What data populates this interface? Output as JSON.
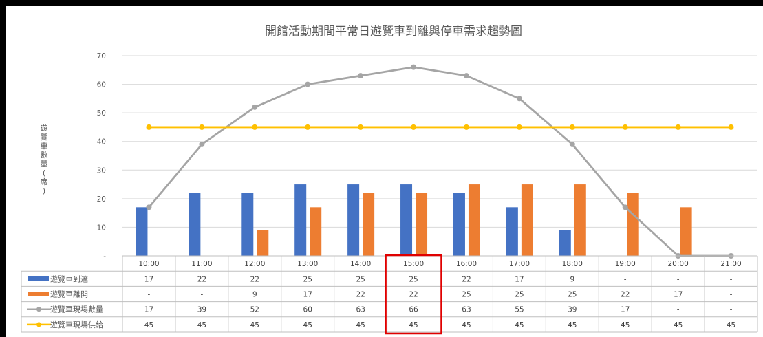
{
  "chart_data": {
    "type": "bar",
    "title": "開館活動期間平常日遊覽車到離與停車需求趨勢圖",
    "ylabel": "遊覽車數量(席)",
    "ylim": [
      0,
      70
    ],
    "yticks": [
      "-",
      "10",
      "20",
      "30",
      "40",
      "50",
      "60",
      "70"
    ],
    "grid": true,
    "legend": "data-table",
    "categories": [
      "10:00",
      "11:00",
      "12:00",
      "13:00",
      "14:00",
      "15:00",
      "16:00",
      "17:00",
      "18:00",
      "19:00",
      "20:00",
      "21:00"
    ],
    "highlight_category": "15:00",
    "highlight_color": "#e00000",
    "series": [
      {
        "name": "遊覽車到達",
        "kind": "bar",
        "color": "#4472c4",
        "values": [
          17,
          22,
          22,
          25,
          25,
          25,
          22,
          17,
          9,
          0,
          0,
          0
        ],
        "labels": [
          "17",
          "22",
          "22",
          "25",
          "25",
          "25",
          "22",
          "17",
          "9",
          "-",
          "-",
          "-"
        ]
      },
      {
        "name": "遊覽車離開",
        "kind": "bar",
        "color": "#ed7d31",
        "values": [
          0,
          0,
          9,
          17,
          22,
          22,
          25,
          25,
          25,
          22,
          17,
          0
        ],
        "labels": [
          "-",
          "-",
          "9",
          "17",
          "22",
          "22",
          "25",
          "25",
          "25",
          "22",
          "17",
          "-"
        ]
      },
      {
        "name": "遊覽車現場數量",
        "kind": "line",
        "color": "#a5a5a5",
        "values": [
          17,
          39,
          52,
          60,
          63,
          66,
          63,
          55,
          39,
          17,
          0,
          0
        ],
        "labels": [
          "17",
          "39",
          "52",
          "60",
          "63",
          "66",
          "63",
          "55",
          "39",
          "17",
          "-",
          "-"
        ]
      },
      {
        "name": "遊覽車現場供給",
        "kind": "line",
        "color": "#ffc000",
        "values": [
          45,
          45,
          45,
          45,
          45,
          45,
          45,
          45,
          45,
          45,
          45,
          45
        ],
        "labels": [
          "45",
          "45",
          "45",
          "45",
          "45",
          "45",
          "45",
          "45",
          "45",
          "45",
          "45",
          "45"
        ]
      }
    ]
  }
}
